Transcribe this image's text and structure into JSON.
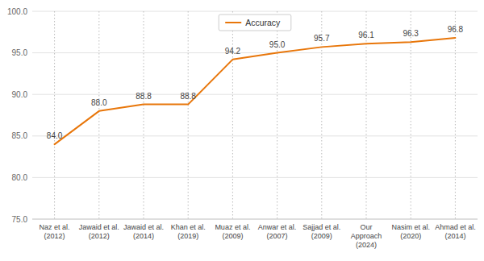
{
  "chart_data": {
    "type": "line",
    "categories": [
      "Naz et al.\n(2012)",
      "Jawaid et al.\n(2012)",
      "Jawaid et al.\n(2014)",
      "Khan et al.\n(2019)",
      "Muaz et al.\n(2009)",
      "Anwar et al.\n(2007)",
      "Sajjad et al.\n(2009)",
      "Our\nApproach\n(2024)",
      "Nasim et al.\n(2020)",
      "Ahmad et al.\n(2014)"
    ],
    "series": [
      {
        "name": "Accuracy",
        "color": "#E8760A",
        "values": [
          84.0,
          88.0,
          88.8,
          88.8,
          94.2,
          95.0,
          95.7,
          96.1,
          96.3,
          96.8
        ],
        "value_labels": [
          "84.0",
          "88.0",
          "88.8",
          "88.8",
          "94.2",
          "95.0",
          "95.7",
          "96.1",
          "96.3",
          "96.8"
        ]
      }
    ],
    "ylim": [
      75.0,
      100.0
    ],
    "yticks": [
      {
        "value": 75.0,
        "label": "75.0"
      },
      {
        "value": 80.0,
        "label": "80.0"
      },
      {
        "value": 85.0,
        "label": "85.0"
      },
      {
        "value": 90.0,
        "label": "90.0"
      },
      {
        "value": 95.0,
        "label": "95.0"
      },
      {
        "value": 100.0,
        "label": "100.0"
      }
    ],
    "grid": true,
    "legend": "top",
    "data_labels": true
  }
}
